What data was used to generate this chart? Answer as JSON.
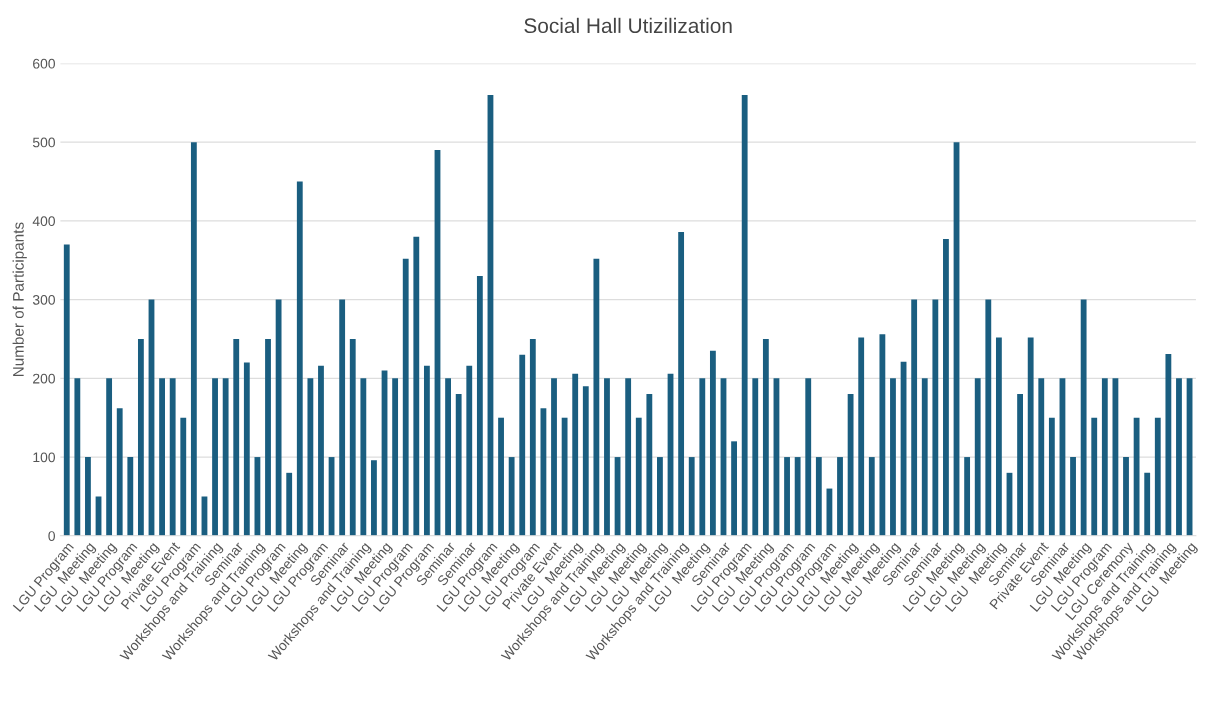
{
  "chart_data": {
    "type": "bar",
    "title": "Social Hall Utizilization",
    "ylabel": "Number of Participants",
    "color": "#1a5e80",
    "categories": [
      "LGU Program",
      null,
      "LGU  Meeting",
      null,
      "LGU  Meeting",
      null,
      "LGU Program",
      null,
      "LGU  Meeting",
      null,
      "Private Event",
      null,
      "LGU Program",
      null,
      "Workshops and Training",
      null,
      "Seminar",
      null,
      "Workshops and Training",
      null,
      "LGU Program",
      null,
      "LGU  Meeting",
      null,
      "LGU Program",
      null,
      "Seminar",
      null,
      "Workshops and Training",
      null,
      "LGU  Meeting",
      null,
      "LGU Program",
      null,
      "LGU Program",
      null,
      "Seminar",
      null,
      "Seminar",
      null,
      "LGU Program",
      null,
      "LGU  Meeting",
      null,
      "LGU Program",
      null,
      "Private Event",
      null,
      "LGU  Meeting",
      null,
      "Workshops and Training",
      null,
      "LGU  Meeting",
      null,
      "LGU  Meeting",
      null,
      "LGU  Meeting",
      null,
      "Workshops and Training",
      null,
      "LGU  Meeting",
      null,
      "Seminar",
      null,
      "LGU Program",
      null,
      "LGU  Meeting",
      null,
      "LGU Program",
      null,
      "LGU Program",
      null,
      "LGU Program",
      null,
      "LGU  Meeting",
      null,
      "LGU  Meeting",
      null,
      "LGU  Meeting",
      null,
      "Seminar",
      null,
      "Seminar",
      null,
      "LGU  Meeting",
      null,
      "LGU  Meeting",
      null,
      "LGU  Meeting",
      null,
      "Seminar",
      null,
      "Private Event",
      null,
      "Seminar",
      null,
      "LGU  Meeting",
      null,
      "LGU Program",
      null,
      "LGU Ceremony",
      null,
      "Workshops and Training",
      null,
      "Workshops and Training",
      null,
      "LGU  Meeting"
    ],
    "values": [
      370,
      200,
      100,
      50,
      200,
      162,
      100,
      250,
      300,
      200,
      200,
      150,
      500,
      50,
      200,
      200,
      250,
      220,
      100,
      250,
      300,
      80,
      450,
      200,
      216,
      100,
      300,
      250,
      200,
      96,
      210,
      200,
      352,
      380,
      216,
      490,
      200,
      180,
      216,
      330,
      560,
      150,
      100,
      230,
      250,
      162,
      200,
      150,
      206,
      190,
      352,
      200,
      100,
      200,
      150,
      180,
      100,
      206,
      386,
      100,
      200,
      235,
      200,
      120,
      560,
      200,
      250,
      200,
      100,
      100,
      200,
      100,
      60,
      100,
      180,
      252,
      100,
      256,
      200,
      221,
      300,
      200,
      300,
      377,
      500,
      100,
      200,
      300,
      252,
      80,
      180,
      252,
      200,
      150,
      200,
      100,
      300,
      150,
      200,
      200,
      100,
      150,
      80,
      150,
      231,
      200,
      200
    ],
    "ylim": [
      0,
      600
    ],
    "yticks": [
      0,
      100,
      200,
      300,
      400,
      500,
      600
    ],
    "grid": "y"
  }
}
